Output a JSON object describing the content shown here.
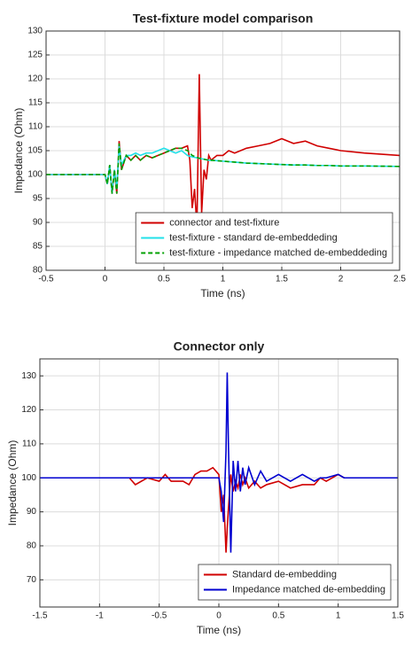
{
  "chart_data": [
    {
      "type": "line",
      "title": "Test-fixture model comparison",
      "xlabel": "Time (ns)",
      "ylabel": "Impedance (Ohm)",
      "x": [
        -0.5,
        0,
        0.02,
        0.04,
        0.06,
        0.08,
        0.1,
        0.12,
        0.14,
        0.18,
        0.22,
        0.26,
        0.3,
        0.35,
        0.4,
        0.45,
        0.5,
        0.55,
        0.6,
        0.65,
        0.7,
        0.72,
        0.74,
        0.76,
        0.78,
        0.8,
        0.82,
        0.84,
        0.86,
        0.88,
        0.9,
        0.95,
        1.0,
        1.05,
        1.1,
        1.2,
        1.3,
        1.4,
        1.5,
        1.6,
        1.7,
        1.8,
        1.9,
        2.0,
        2.2,
        2.5
      ],
      "series": [
        {
          "name": "connector and test-fixture",
          "color": "#d00000",
          "line_style": "solid",
          "values": [
            100,
            100,
            98,
            102,
            96,
            101,
            96,
            107,
            101,
            104,
            103,
            104,
            103,
            104,
            103.5,
            104,
            104.5,
            105,
            105.5,
            105.5,
            106,
            103,
            93,
            97,
            89,
            121,
            92,
            101,
            99,
            104,
            103,
            104,
            104,
            105,
            104.5,
            105.5,
            106,
            106.5,
            107.5,
            106.5,
            107,
            106,
            105.5,
            105,
            104.5,
            104
          ]
        },
        {
          "name": "test-fixture - standard de-embeddeding",
          "color": "#22e0e8",
          "line_style": "solid",
          "values": [
            100,
            100,
            98,
            102,
            96,
            101,
            97,
            106,
            102,
            104,
            104,
            104.5,
            104,
            104.5,
            104.5,
            105,
            105.5,
            105,
            104.5,
            105,
            104,
            103.8,
            103.7,
            103.6,
            103.5,
            103.4,
            103.3,
            103.2,
            103.1,
            103,
            103,
            102.9,
            102.8,
            102.7,
            102.6,
            102.4,
            102.3,
            102.2,
            102.1,
            102,
            102,
            101.9,
            101.9,
            101.8,
            101.8,
            101.7
          ]
        },
        {
          "name": "test-fixture - impedance matched de-embeddeding",
          "color": "#00a000",
          "line_style": "dashed",
          "values": [
            100,
            100,
            98,
            102,
            96,
            101,
            96,
            106.5,
            101,
            104,
            103,
            104,
            103,
            104,
            103.5,
            104,
            104.5,
            105,
            105.5,
            105.5,
            105,
            104.5,
            104,
            103.8,
            103.6,
            103.4,
            103.3,
            103.2,
            103.1,
            103,
            103,
            102.9,
            102.8,
            102.7,
            102.6,
            102.4,
            102.3,
            102.2,
            102.1,
            102,
            102,
            101.9,
            101.9,
            101.8,
            101.8,
            101.7
          ]
        }
      ],
      "xlim": [
        -0.5,
        2.5
      ],
      "xticks": [
        -0.5,
        0,
        0.5,
        1,
        1.5,
        2,
        2.5
      ],
      "ylim": [
        80,
        130
      ],
      "yticks": [
        80,
        85,
        90,
        95,
        100,
        105,
        110,
        115,
        120,
        125,
        130
      ],
      "grid": true,
      "legend": "lower right"
    },
    {
      "type": "line",
      "title": "Connector only",
      "xlabel": "Time (ns)",
      "ylabel": "Impedance (Ohm)",
      "x": [
        -1.5,
        -0.75,
        -0.7,
        -0.6,
        -0.5,
        -0.45,
        -0.4,
        -0.3,
        -0.25,
        -0.2,
        -0.15,
        -0.1,
        -0.05,
        0,
        0.02,
        0.04,
        0.06,
        0.07,
        0.08,
        0.1,
        0.12,
        0.14,
        0.16,
        0.18,
        0.2,
        0.22,
        0.25,
        0.3,
        0.35,
        0.4,
        0.5,
        0.6,
        0.7,
        0.8,
        0.85,
        0.9,
        1.0,
        1.05,
        1.1,
        1.2,
        1.3,
        1.4,
        1.5
      ],
      "series": [
        {
          "name": "Standard de-embedding",
          "color": "#d00000",
          "line_style": "solid",
          "values": [
            100,
            100,
            98,
            100,
            99,
            101,
            99,
            99,
            98,
            101,
            102,
            102,
            103,
            101,
            90,
            95,
            78,
            85,
            91,
            101,
            96,
            99,
            97,
            101,
            98,
            100,
            97,
            99,
            97,
            98,
            99,
            97,
            98,
            98,
            100,
            99,
            101,
            100,
            100,
            100,
            100,
            100,
            100
          ]
        },
        {
          "name": "Impedance matched de-embedding",
          "color": "#0000d0",
          "line_style": "solid",
          "values": [
            100,
            100,
            100,
            100,
            100,
            100,
            100,
            100,
            100,
            100,
            100,
            100,
            100,
            100,
            96,
            87,
            108,
            131,
            110,
            78,
            105,
            96,
            105,
            96,
            103,
            98,
            103,
            98,
            102,
            99,
            101,
            99,
            101,
            99,
            100,
            100,
            101,
            100,
            100,
            100,
            100,
            100,
            100
          ]
        }
      ],
      "xlim": [
        -1.5,
        1.5
      ],
      "xticks": [
        -1.5,
        -1,
        -0.5,
        0,
        0.5,
        1,
        1.5
      ],
      "ylim": [
        62,
        135
      ],
      "yticks": [
        70,
        80,
        90,
        100,
        110,
        120,
        130
      ],
      "grid": true,
      "legend": "lower right"
    }
  ]
}
